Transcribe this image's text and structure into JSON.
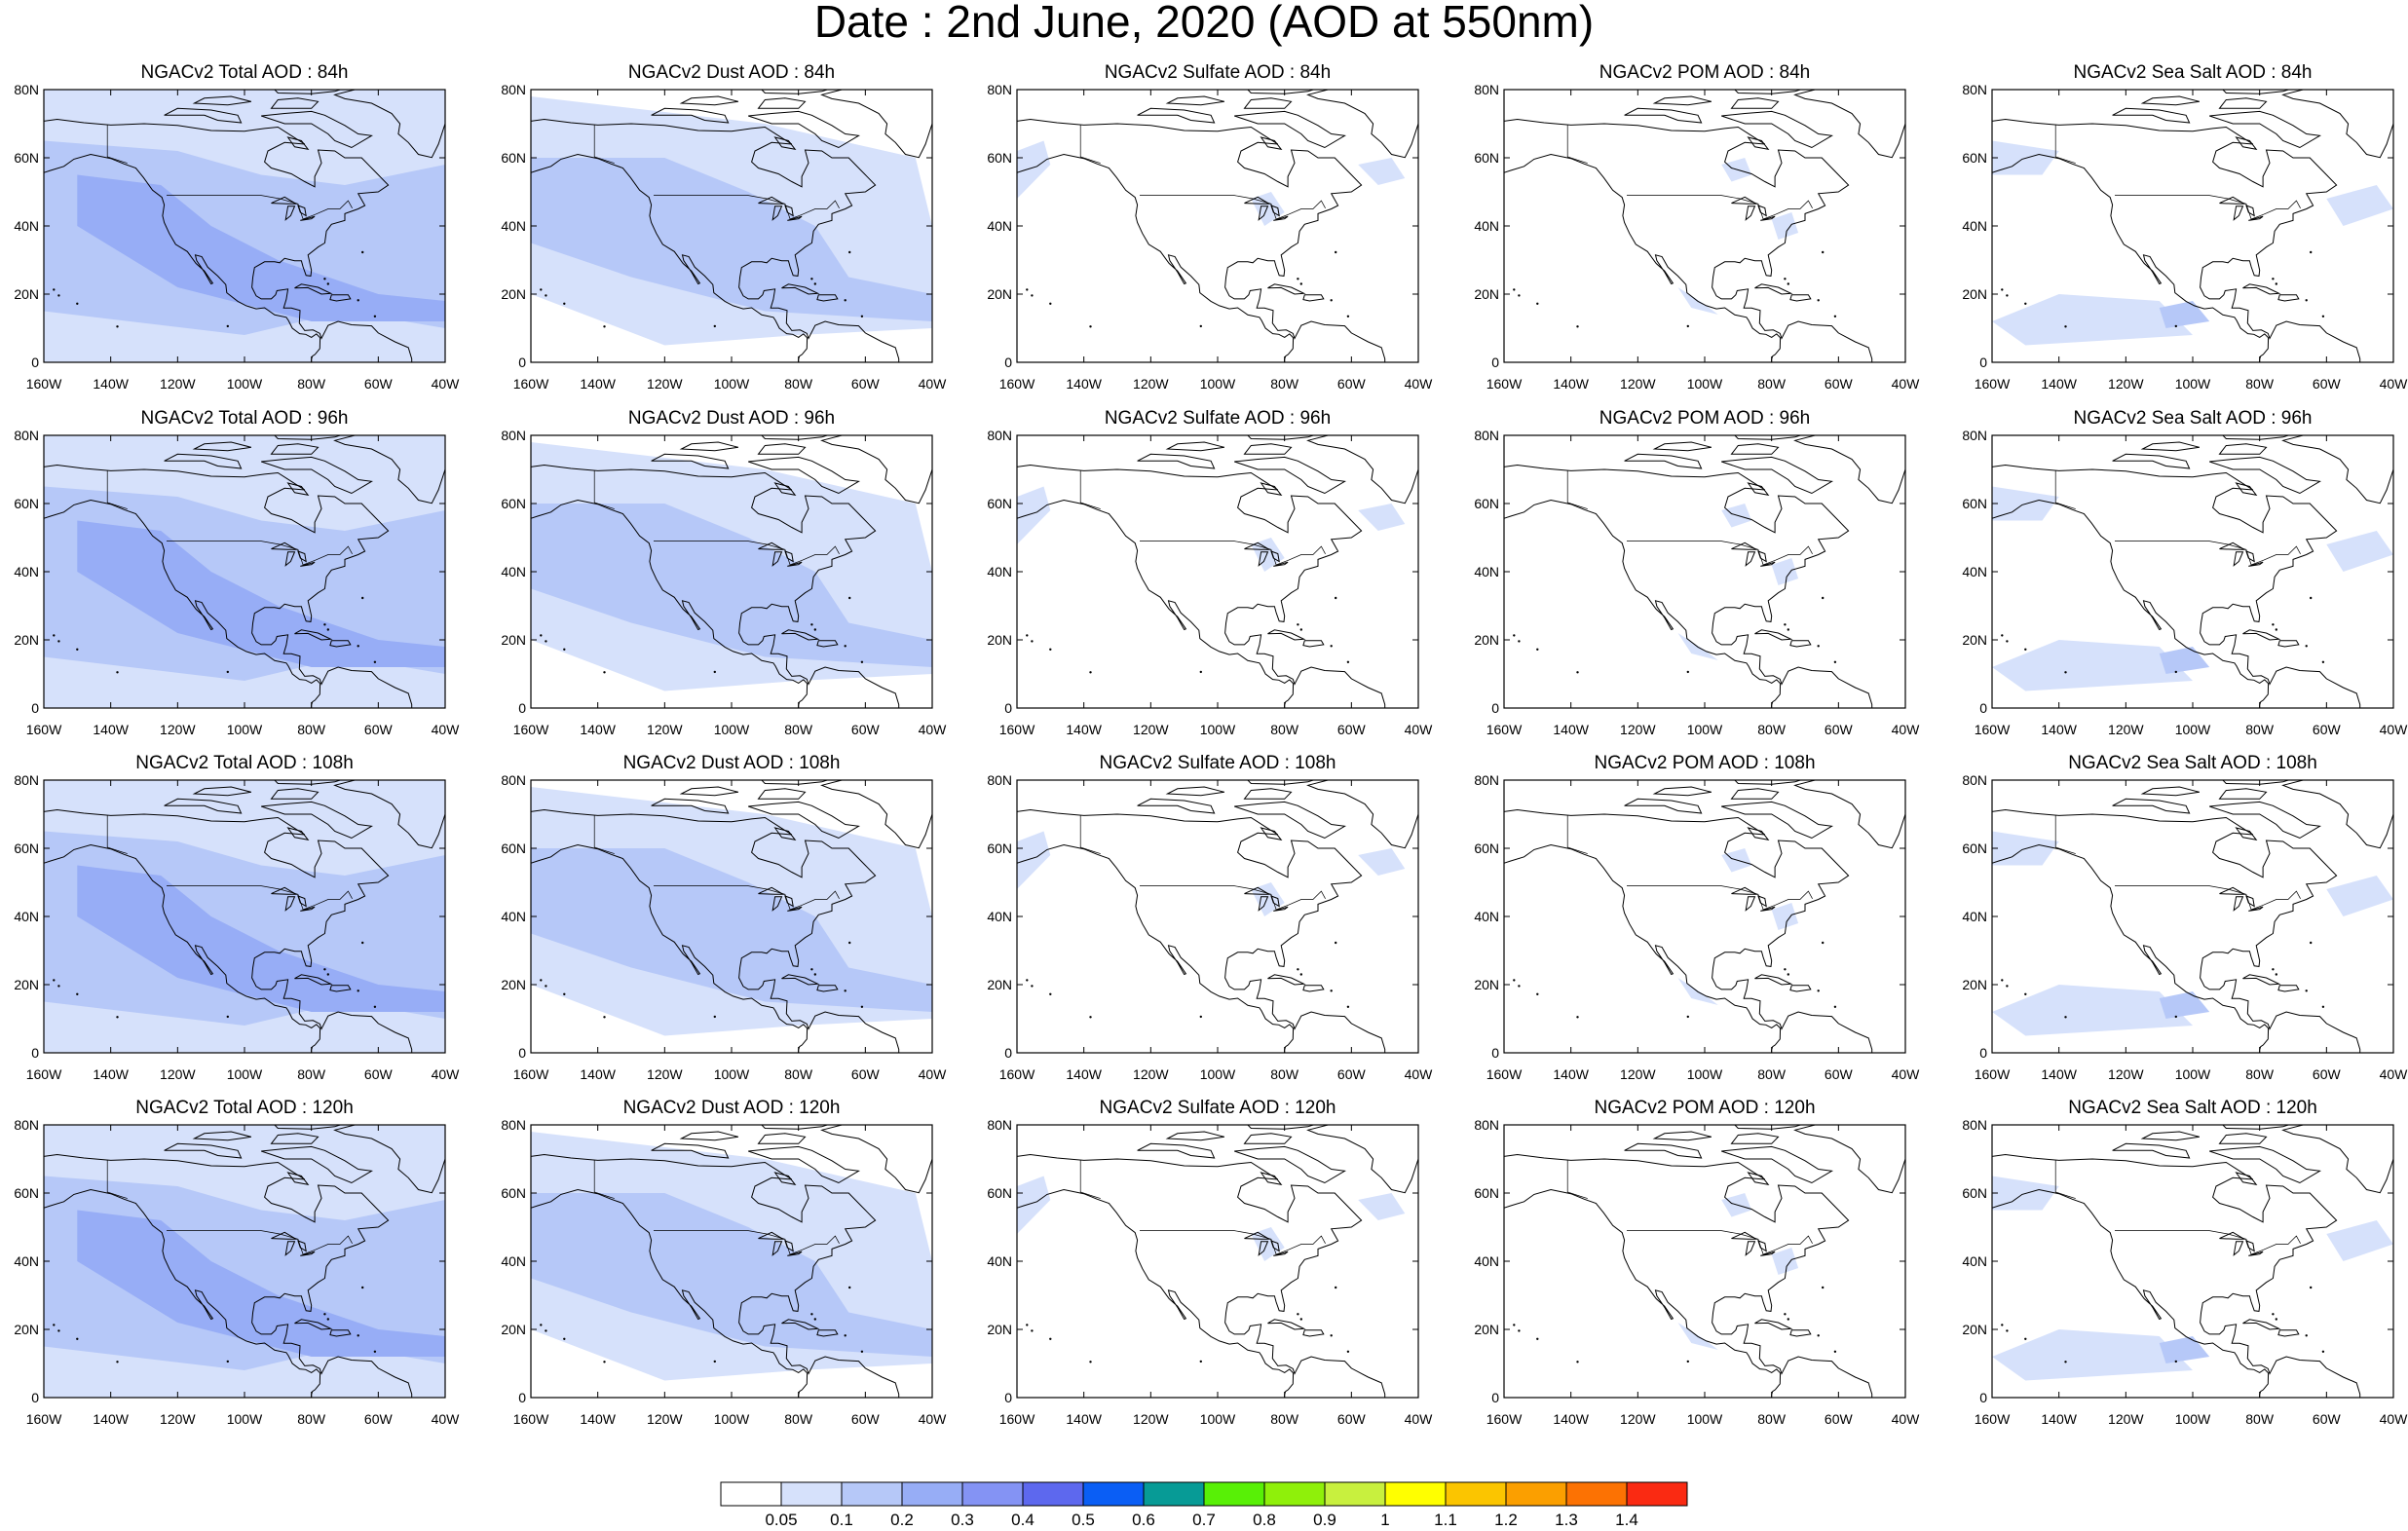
{
  "title": "Date : 2nd June, 2020 (AOD at 550nm)",
  "map": {
    "lon_ticks": [
      "160W",
      "140W",
      "120W",
      "100W",
      "80W",
      "60W",
      "40W"
    ],
    "lat_ticks": [
      "0",
      "20N",
      "40N",
      "60N",
      "80N"
    ],
    "extent": {
      "lon_min": -160,
      "lon_max": -40,
      "lat_min": 0,
      "lat_max": 80
    },
    "projection": "cylindrical equidistant",
    "coastline_color": "#000000"
  },
  "panels": [
    {
      "title": "NGACv2 Total AOD : 84h",
      "species": "total",
      "forecast_hour": 84
    },
    {
      "title": "NGACv2 Dust AOD : 84h",
      "species": "dust",
      "forecast_hour": 84
    },
    {
      "title": "NGACv2 Sulfate AOD : 84h",
      "species": "sulfate",
      "forecast_hour": 84
    },
    {
      "title": "NGACv2 POM AOD : 84h",
      "species": "pom",
      "forecast_hour": 84
    },
    {
      "title": "NGACv2 Sea Salt AOD : 84h",
      "species": "seasalt",
      "forecast_hour": 84
    },
    {
      "title": "NGACv2 Total AOD : 96h",
      "species": "total",
      "forecast_hour": 96
    },
    {
      "title": "NGACv2 Dust AOD : 96h",
      "species": "dust",
      "forecast_hour": 96
    },
    {
      "title": "NGACv2 Sulfate AOD : 96h",
      "species": "sulfate",
      "forecast_hour": 96
    },
    {
      "title": "NGACv2 POM AOD : 96h",
      "species": "pom",
      "forecast_hour": 96
    },
    {
      "title": "NGACv2 Sea Salt AOD : 96h",
      "species": "seasalt",
      "forecast_hour": 96
    },
    {
      "title": "NGACv2 Total AOD : 108h",
      "species": "total",
      "forecast_hour": 108
    },
    {
      "title": "NGACv2 Dust AOD : 108h",
      "species": "dust",
      "forecast_hour": 108
    },
    {
      "title": "NGACv2 Sulfate AOD : 108h",
      "species": "sulfate",
      "forecast_hour": 108
    },
    {
      "title": "NGACv2 POM AOD : 108h",
      "species": "pom",
      "forecast_hour": 108
    },
    {
      "title": "NGACv2 Sea Salt AOD : 108h",
      "species": "seasalt",
      "forecast_hour": 108
    },
    {
      "title": "NGACv2 Total AOD : 120h",
      "species": "total",
      "forecast_hour": 120
    },
    {
      "title": "NGACv2 Dust AOD : 120h",
      "species": "dust",
      "forecast_hour": 120
    },
    {
      "title": "NGACv2 Sulfate AOD : 120h",
      "species": "sulfate",
      "forecast_hour": 120
    },
    {
      "title": "NGACv2 POM AOD : 120h",
      "species": "pom",
      "forecast_hour": 120
    },
    {
      "title": "NGACv2 Sea Salt  AOD : 120h",
      "species": "seasalt",
      "forecast_hour": 120
    }
  ],
  "colorbar": {
    "labels": [
      "0.05",
      "0.1",
      "0.2",
      "0.3",
      "0.4",
      "0.5",
      "0.6",
      "0.7",
      "0.8",
      "0.9",
      "1",
      "1.1",
      "1.2",
      "1.3",
      "1.4"
    ],
    "colors": [
      "#ffffff",
      "#d6e1fb",
      "#b6c8f8",
      "#97adf6",
      "#8493f4",
      "#5d68ee",
      "#0a5ef5",
      "#079b96",
      "#58f006",
      "#8ff00a",
      "#c8f03e",
      "#ffff00",
      "#fbc500",
      "#fb9f00",
      "#fc7203",
      "#fa2a12"
    ]
  }
}
